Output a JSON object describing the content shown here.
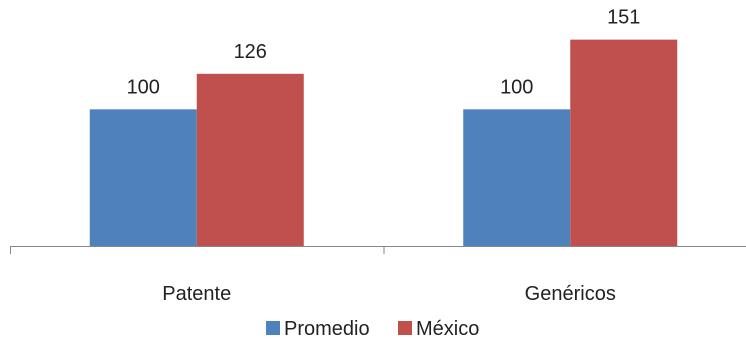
{
  "chart_data": {
    "type": "bar",
    "categories": [
      "Patente",
      "Genéricos"
    ],
    "series": [
      {
        "name": "Promedio",
        "values": [
          100,
          100
        ],
        "color": "#4F81BD"
      },
      {
        "name": "México",
        "values": [
          126,
          151
        ],
        "color": "#C0504D"
      }
    ],
    "data_labels": true,
    "legend_position": "bottom",
    "grid": false,
    "ylim": [
      0,
      180
    ]
  }
}
